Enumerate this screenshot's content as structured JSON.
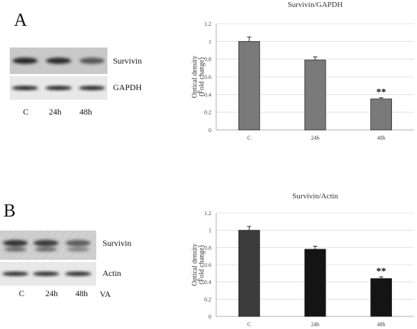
{
  "panels": [
    {
      "letter": "A",
      "blot": {
        "bands": [
          {
            "protein": "Survivin",
            "intensities": [
              0.85,
              0.8,
              0.45
            ],
            "tone": "dark"
          },
          {
            "protein": "GAPDH",
            "intensities": [
              0.9,
              0.9,
              0.9
            ],
            "tone": "light"
          }
        ],
        "lanes": [
          "C",
          "24h",
          "48h"
        ],
        "treatment": ""
      }
    },
    {
      "letter": "B",
      "blot": {
        "bands": [
          {
            "protein": "Survivin",
            "intensities": [
              0.75,
              0.7,
              0.4
            ],
            "tone": "grainy"
          },
          {
            "protein": "Actin",
            "intensities": [
              0.85,
              0.85,
              0.85
            ],
            "tone": "light"
          }
        ],
        "lanes": [
          "C",
          "24h",
          "48h"
        ],
        "treatment": "VA"
      }
    }
  ],
  "chart_data": [
    {
      "type": "bar",
      "title": "Survivin/GAPDH",
      "categories": [
        "C",
        "24h",
        "48h"
      ],
      "values": [
        1.0,
        0.79,
        0.35
      ],
      "errors": [
        0.05,
        0.035,
        0.015
      ],
      "annotations": [
        "",
        "",
        "**"
      ],
      "ylabel_line1": "Optical density",
      "ylabel_line2": "(Fold change)",
      "ylim": [
        0,
        1.2
      ],
      "yticks": [
        "0",
        "0.2",
        "0.4",
        "0.6",
        "0.8",
        "1",
        "1.2"
      ],
      "bar_color": "#7a7a7a",
      "grid": true
    },
    {
      "type": "bar",
      "title": "Survivin/Actin",
      "categories": [
        "C",
        "24h",
        "48h"
      ],
      "values": [
        1.0,
        0.78,
        0.44
      ],
      "errors": [
        0.045,
        0.035,
        0.02
      ],
      "annotations": [
        "",
        "",
        "**"
      ],
      "ylabel_line1": "Optical density",
      "ylabel_line2": "(Fold change)",
      "ylim": [
        0,
        1.2
      ],
      "yticks": [
        "0",
        "0.2",
        "0.4",
        "0.6",
        "0.8",
        "1",
        "1.2"
      ],
      "bar_colors": [
        "#3c3c3c",
        "#141414",
        "#141414"
      ],
      "grid": true
    }
  ]
}
